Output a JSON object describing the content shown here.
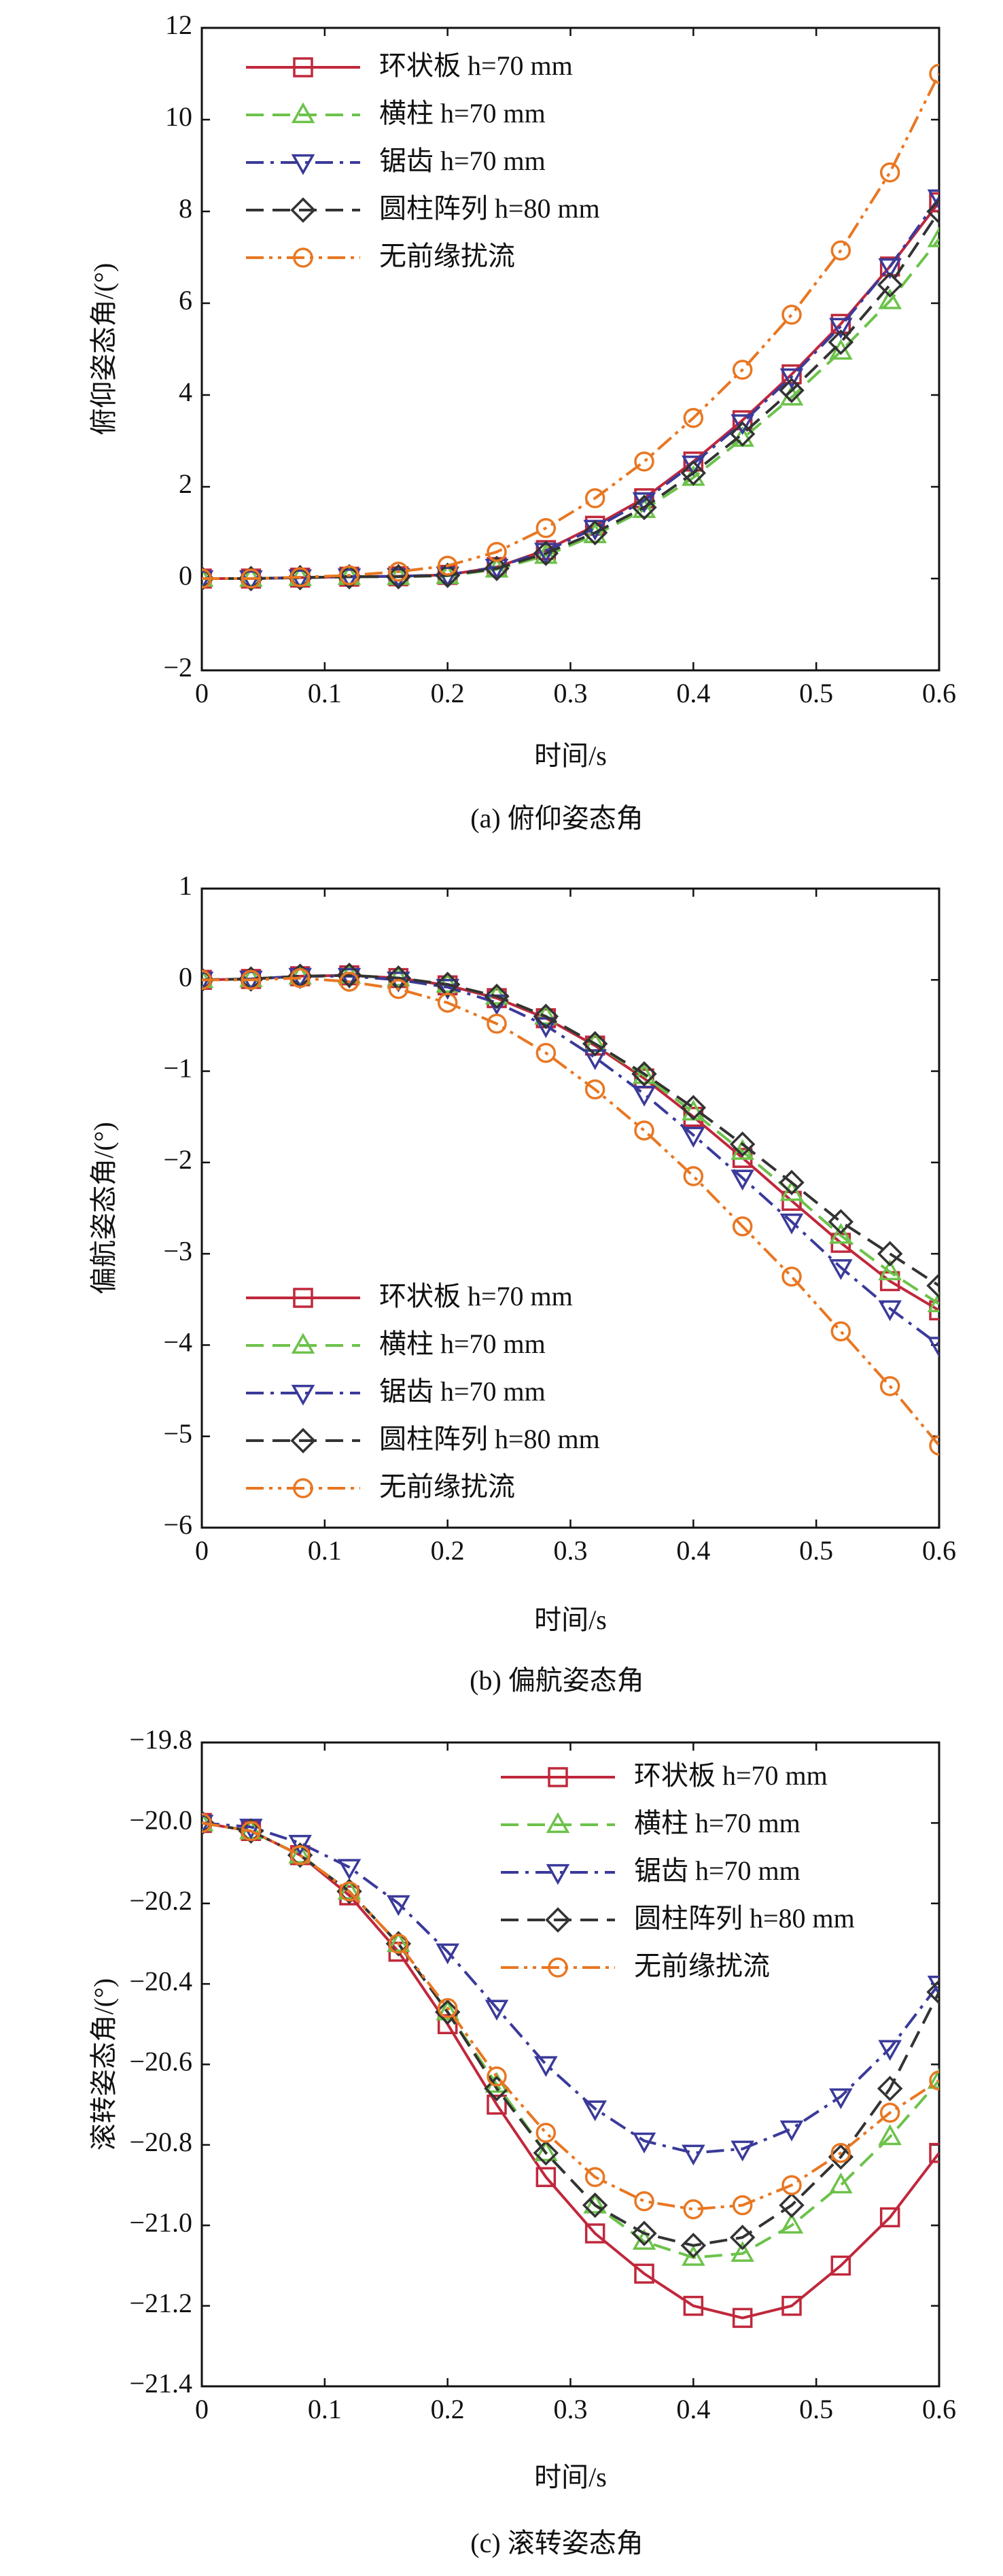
{
  "chart_data": [
    {
      "type": "line",
      "caption": "(a) 俯仰姿态角",
      "x_label": "时间/s",
      "y_label": "俯仰姿态角/(°)",
      "legend": "upper left",
      "x": [
        0,
        0.04,
        0.08,
        0.12,
        0.16,
        0.2,
        0.24,
        0.28,
        0.32,
        0.36,
        0.4,
        0.44,
        0.48,
        0.52,
        0.56,
        0.6
      ],
      "xlim": [
        0,
        0.6
      ],
      "xticks": [
        0,
        0.1,
        0.2,
        0.3,
        0.4,
        0.5,
        0.6
      ],
      "ylim": [
        -2,
        12
      ],
      "yticks": [
        {
          "value": -2,
          "label": "−2"
        },
        0,
        2,
        4,
        6,
        8,
        10,
        12
      ],
      "series": [
        {
          "name": "环状板 h=70 mm",
          "color": "#c0283c",
          "marker": "square",
          "line_style": "solid",
          "values": [
            0,
            0,
            0.02,
            0.04,
            0.05,
            0.08,
            0.25,
            0.62,
            1.15,
            1.75,
            2.55,
            3.45,
            4.45,
            5.55,
            6.8,
            8.2
          ]
        },
        {
          "name": "横柱 h=70 mm",
          "color": "#6cc24a",
          "marker": "triangle-up",
          "line_style": "dashed",
          "values": [
            0,
            0,
            0.02,
            0.04,
            0.04,
            0.06,
            0.2,
            0.5,
            0.95,
            1.5,
            2.2,
            3.05,
            3.95,
            4.95,
            6.05,
            7.4
          ]
        },
        {
          "name": "锯齿 h=70 mm",
          "color": "#3a3a9a",
          "marker": "triangle-down",
          "line_style": "dashdot",
          "values": [
            0,
            0,
            0.02,
            0.04,
            0.05,
            0.08,
            0.25,
            0.6,
            1.1,
            1.7,
            2.5,
            3.4,
            4.4,
            5.5,
            6.8,
            8.3
          ]
        },
        {
          "name": "圆柱阵列 h=80 mm",
          "color": "#333333",
          "marker": "diamond",
          "line_style": "dashed",
          "values": [
            0,
            0,
            0.02,
            0.04,
            0.04,
            0.07,
            0.22,
            0.55,
            1.0,
            1.55,
            2.3,
            3.15,
            4.1,
            5.15,
            6.4,
            8.0
          ]
        },
        {
          "name": "无前缘扰流",
          "color": "#e87722",
          "marker": "circle",
          "line_style": "dashdotdot",
          "values": [
            0,
            0,
            0.03,
            0.07,
            0.15,
            0.28,
            0.58,
            1.1,
            1.75,
            2.55,
            3.5,
            4.55,
            5.75,
            7.15,
            8.85,
            11.0
          ]
        }
      ]
    },
    {
      "type": "line",
      "caption": "(b) 偏航姿态角",
      "x_label": "时间/s",
      "y_label": "偏航姿态角/(°)",
      "legend": "lower left",
      "x": [
        0,
        0.04,
        0.08,
        0.12,
        0.16,
        0.2,
        0.24,
        0.28,
        0.32,
        0.36,
        0.4,
        0.44,
        0.48,
        0.52,
        0.56,
        0.6
      ],
      "xlim": [
        0,
        0.6
      ],
      "xticks": [
        0,
        0.1,
        0.2,
        0.3,
        0.4,
        0.5,
        0.6
      ],
      "ylim": [
        -6,
        1
      ],
      "yticks": [
        {
          "value": -6,
          "label": "−6"
        },
        {
          "value": -5,
          "label": "−5"
        },
        {
          "value": -4,
          "label": "−4"
        },
        {
          "value": -3,
          "label": "−3"
        },
        {
          "value": -2,
          "label": "−2"
        },
        {
          "value": -1,
          "label": "−1"
        },
        0,
        1
      ],
      "series": [
        {
          "name": "环状板 h=70 mm",
          "color": "#c0283c",
          "marker": "square",
          "line_style": "solid",
          "values": [
            0,
            0.01,
            0.04,
            0.05,
            0.02,
            -0.06,
            -0.2,
            -0.42,
            -0.72,
            -1.08,
            -1.5,
            -1.95,
            -2.42,
            -2.88,
            -3.3,
            -3.62
          ]
        },
        {
          "name": "横柱 h=70 mm",
          "color": "#6cc24a",
          "marker": "triangle-up",
          "line_style": "dashed",
          "values": [
            0,
            0.01,
            0.04,
            0.05,
            0.02,
            -0.05,
            -0.18,
            -0.4,
            -0.7,
            -1.05,
            -1.45,
            -1.88,
            -2.33,
            -2.8,
            -3.2,
            -3.55
          ]
        },
        {
          "name": "锯齿 h=70 mm",
          "color": "#3a3a9a",
          "marker": "triangle-down",
          "line_style": "dashdot",
          "values": [
            0,
            0.01,
            0.04,
            0.04,
            0,
            -0.08,
            -0.25,
            -0.5,
            -0.85,
            -1.25,
            -1.7,
            -2.17,
            -2.65,
            -3.15,
            -3.6,
            -4.0
          ]
        },
        {
          "name": "圆柱阵列 h=80 mm",
          "color": "#333333",
          "marker": "diamond",
          "line_style": "dashed",
          "values": [
            0,
            0.01,
            0.04,
            0.05,
            0.02,
            -0.05,
            -0.18,
            -0.4,
            -0.7,
            -1.03,
            -1.4,
            -1.8,
            -2.22,
            -2.65,
            -3.0,
            -3.35
          ]
        },
        {
          "name": "无前缘扰流",
          "color": "#e87722",
          "marker": "circle",
          "line_style": "dashdotdot",
          "values": [
            0,
            0,
            0.02,
            -0.02,
            -0.1,
            -0.25,
            -0.48,
            -0.8,
            -1.2,
            -1.65,
            -2.15,
            -2.7,
            -3.25,
            -3.85,
            -4.45,
            -5.1
          ]
        }
      ]
    },
    {
      "type": "line",
      "caption": "(c) 滚转姿态角",
      "x_label": "时间/s",
      "y_label": "滚转姿态角/(°)",
      "legend": "upper right",
      "x": [
        0,
        0.04,
        0.08,
        0.12,
        0.16,
        0.2,
        0.24,
        0.28,
        0.32,
        0.36,
        0.4,
        0.44,
        0.48,
        0.52,
        0.56,
        0.6
      ],
      "xlim": [
        0,
        0.6
      ],
      "xticks": [
        0,
        0.1,
        0.2,
        0.3,
        0.4,
        0.5,
        0.6
      ],
      "ylim": [
        -21.4,
        -19.8
      ],
      "yticks": [
        {
          "value": -21.4,
          "label": "−21.4"
        },
        {
          "value": -21.2,
          "label": "−21.2"
        },
        {
          "value": -21.0,
          "label": "−21.0"
        },
        {
          "value": -20.8,
          "label": "−20.8"
        },
        {
          "value": -20.6,
          "label": "−20.6"
        },
        {
          "value": -20.4,
          "label": "−20.4"
        },
        {
          "value": -20.2,
          "label": "−20.2"
        },
        {
          "value": -20.0,
          "label": "−20.0"
        },
        {
          "value": -19.8,
          "label": "−19.8"
        }
      ],
      "series": [
        {
          "name": "环状板 h=70 mm",
          "color": "#c0283c",
          "marker": "square",
          "line_style": "solid",
          "values": [
            -20.0,
            -20.02,
            -20.08,
            -20.18,
            -20.32,
            -20.5,
            -20.7,
            -20.88,
            -21.02,
            -21.12,
            -21.2,
            -21.23,
            -21.2,
            -21.1,
            -20.98,
            -20.82
          ]
        },
        {
          "name": "横柱 h=70 mm",
          "color": "#6cc24a",
          "marker": "triangle-up",
          "line_style": "dashed",
          "values": [
            -20.0,
            -20.02,
            -20.08,
            -20.17,
            -20.3,
            -20.47,
            -20.65,
            -20.82,
            -20.95,
            -21.04,
            -21.08,
            -21.07,
            -21.0,
            -20.9,
            -20.78,
            -20.64
          ]
        },
        {
          "name": "锯齿 h=70 mm",
          "color": "#3a3a9a",
          "marker": "triangle-down",
          "line_style": "dashdot",
          "values": [
            -20.0,
            -20.01,
            -20.05,
            -20.11,
            -20.2,
            -20.32,
            -20.46,
            -20.6,
            -20.71,
            -20.79,
            -20.82,
            -20.81,
            -20.76,
            -20.68,
            -20.56,
            -20.4
          ]
        },
        {
          "name": "圆柱阵列 h=80 mm",
          "color": "#333333",
          "marker": "diamond",
          "line_style": "dashed",
          "values": [
            -20.0,
            -20.02,
            -20.08,
            -20.17,
            -20.3,
            -20.47,
            -20.66,
            -20.82,
            -20.95,
            -21.02,
            -21.05,
            -21.03,
            -20.95,
            -20.83,
            -20.66,
            -20.42
          ]
        },
        {
          "name": "无前缘扰流",
          "color": "#e87722",
          "marker": "circle",
          "line_style": "dashdotdot",
          "values": [
            -20.0,
            -20.02,
            -20.08,
            -20.17,
            -20.3,
            -20.46,
            -20.63,
            -20.77,
            -20.88,
            -20.94,
            -20.96,
            -20.95,
            -20.9,
            -20.82,
            -20.72,
            -20.64
          ]
        }
      ]
    }
  ]
}
